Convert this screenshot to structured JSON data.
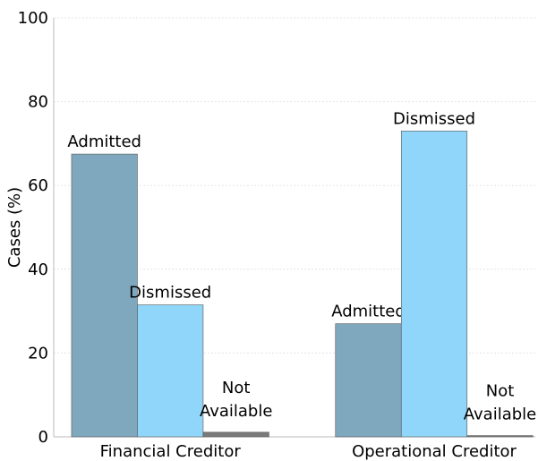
{
  "chart_data": {
    "type": "bar",
    "categories": [
      "Financial Creditor",
      "Operational Creditor"
    ],
    "series": [
      {
        "name": "Admitted",
        "color": "#7fa7bd",
        "values": [
          67.5,
          27
        ]
      },
      {
        "name": "Dismissed",
        "color": "#8fd6fa",
        "values": [
          31.5,
          73
        ]
      },
      {
        "name": "Not Available",
        "color": "#7a7a7a",
        "values": [
          1.1,
          0.3
        ]
      }
    ],
    "ylabel": "Cases (%)",
    "ylim": [
      0,
      100
    ],
    "yticks": [
      0,
      20,
      40,
      60,
      80,
      100
    ],
    "grid": true
  }
}
